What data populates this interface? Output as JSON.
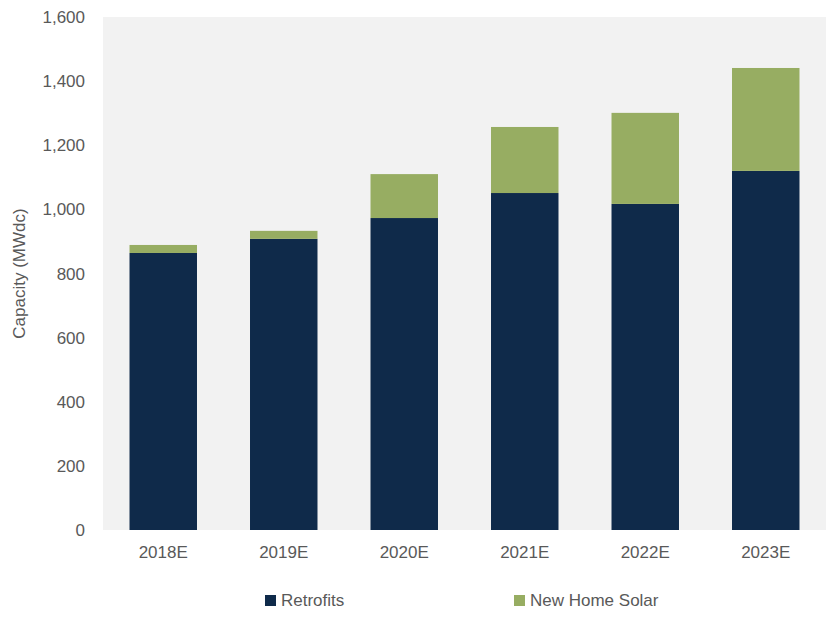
{
  "chart_data": {
    "type": "bar",
    "stacked": true,
    "y_label": "Capacity (MWdc)",
    "categories": [
      "2018E",
      "2019E",
      "2020E",
      "2021E",
      "2022E",
      "2023E"
    ],
    "series": [
      {
        "name": "Retrofits",
        "color": "#0f2a4a",
        "values": [
          864,
          908,
          973,
          1051,
          1017,
          1120
        ]
      },
      {
        "name": "New Home Solar",
        "color": "#97ad62",
        "values": [
          25,
          25,
          137,
          206,
          284,
          321
        ]
      }
    ],
    "ylim": [
      0,
      1600
    ],
    "yticks": [
      0,
      200,
      400,
      600,
      800,
      {
        "value": 1000,
        "label": "1,000"
      },
      {
        "value": 1200,
        "label": "1,200"
      },
      {
        "value": 1400,
        "label": "1,400"
      },
      {
        "value": 1600,
        "label": "1,600"
      }
    ],
    "grid": false,
    "legend": "bottom"
  }
}
